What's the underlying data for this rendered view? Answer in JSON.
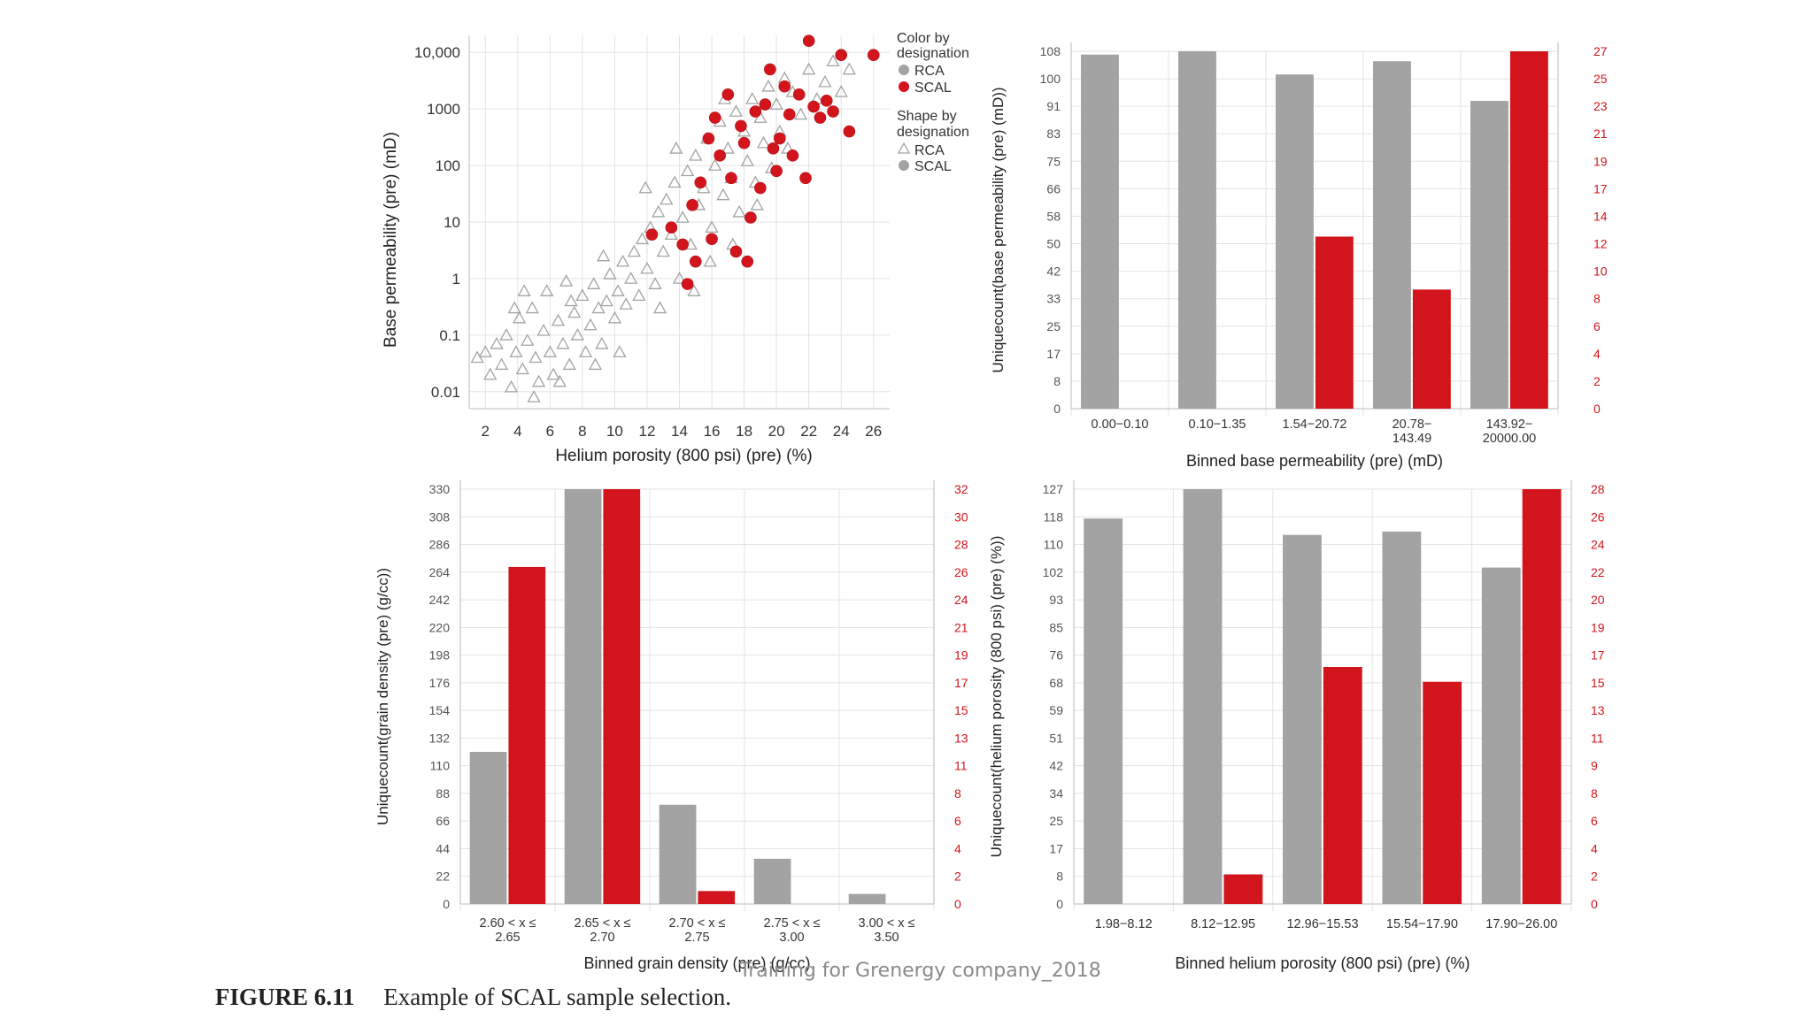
{
  "figure": {
    "caption_label": "FIGURE 6.11",
    "caption_text": "Example of SCAL sample selection.",
    "watermark": "Training for Grenergy company_2018"
  },
  "colors": {
    "rca": "#a3a3a3",
    "scal": "#d2151c",
    "grid": "#e3e3e3",
    "right_axis": "#d2151c"
  },
  "legend": {
    "color_title_1": "Color by",
    "color_title_2": "designation",
    "color_items": [
      "RCA",
      "SCAL"
    ],
    "shape_title_1": "Shape by",
    "shape_title_2": "designation",
    "shape_items": [
      "RCA",
      "SCAL"
    ]
  },
  "chart_data": [
    {
      "type": "scatter",
      "xlabel": "Helium porosity (800 psi) (pre) (%)",
      "ylabel": "Base permeability (pre) (mD)",
      "xlim": [
        1,
        27
      ],
      "ylim": [
        0.005,
        20000
      ],
      "yscale": "log",
      "x_ticks": [
        "2",
        "4",
        "6",
        "8",
        "10",
        "12",
        "14",
        "16",
        "18",
        "20",
        "22",
        "24",
        "26"
      ],
      "y_ticks": [
        {
          "v": 0.01,
          "label": "0.01"
        },
        {
          "v": 0.1,
          "label": "0.1"
        },
        {
          "v": 1,
          "label": "1"
        },
        {
          "v": 10,
          "label": "10"
        },
        {
          "v": 100,
          "label": "100"
        },
        {
          "v": 1000,
          "label": "1000"
        },
        {
          "v": 10000,
          "label": "10,000"
        }
      ],
      "series": [
        {
          "name": "RCA",
          "marker": "triangle",
          "points": [
            [
              1.5,
              0.04
            ],
            [
              2.3,
              0.02
            ],
            [
              2.7,
              0.07
            ],
            [
              3.0,
              0.03
            ],
            [
              3.3,
              0.1
            ],
            [
              3.6,
              0.012
            ],
            [
              3.9,
              0.05
            ],
            [
              4.1,
              0.2
            ],
            [
              4.3,
              0.025
            ],
            [
              4.6,
              0.08
            ],
            [
              4.9,
              0.3
            ],
            [
              5.1,
              0.04
            ],
            [
              5.3,
              0.015
            ],
            [
              5.6,
              0.12
            ],
            [
              5.8,
              0.6
            ],
            [
              6.0,
              0.05
            ],
            [
              6.2,
              0.02
            ],
            [
              6.5,
              0.18
            ],
            [
              6.8,
              0.07
            ],
            [
              7.0,
              0.9
            ],
            [
              7.2,
              0.03
            ],
            [
              7.5,
              0.25
            ],
            [
              7.7,
              0.1
            ],
            [
              8.0,
              0.5
            ],
            [
              8.2,
              0.05
            ],
            [
              8.5,
              0.15
            ],
            [
              8.7,
              0.8
            ],
            [
              9.0,
              0.3
            ],
            [
              9.2,
              0.07
            ],
            [
              9.5,
              0.4
            ],
            [
              9.7,
              1.2
            ],
            [
              10.0,
              0.2
            ],
            [
              10.2,
              0.6
            ],
            [
              10.5,
              2.0
            ],
            [
              10.7,
              0.35
            ],
            [
              11.0,
              1.0
            ],
            [
              11.2,
              3.0
            ],
            [
              11.5,
              0.5
            ],
            [
              11.7,
              5.0
            ],
            [
              12.0,
              1.5
            ],
            [
              12.2,
              8.0
            ],
            [
              12.5,
              0.8
            ],
            [
              12.7,
              15
            ],
            [
              13.0,
              3.0
            ],
            [
              13.2,
              25
            ],
            [
              13.5,
              6.0
            ],
            [
              13.7,
              50
            ],
            [
              14.0,
              1.0
            ],
            [
              14.2,
              12
            ],
            [
              14.5,
              80
            ],
            [
              14.7,
              4.0
            ],
            [
              15.0,
              150
            ],
            [
              15.2,
              20
            ],
            [
              15.5,
              40
            ],
            [
              15.7,
              300
            ],
            [
              16.0,
              8.0
            ],
            [
              16.2,
              100
            ],
            [
              16.5,
              600
            ],
            [
              16.7,
              30
            ],
            [
              17.0,
              200
            ],
            [
              17.2,
              60
            ],
            [
              17.5,
              900
            ],
            [
              17.7,
              15
            ],
            [
              18.0,
              400
            ],
            [
              18.2,
              120
            ],
            [
              18.5,
              1500
            ],
            [
              18.7,
              50
            ],
            [
              19.0,
              700
            ],
            [
              19.2,
              250
            ],
            [
              19.5,
              2500
            ],
            [
              19.7,
              90
            ],
            [
              20.0,
              1200
            ],
            [
              20.2,
              400
            ],
            [
              20.5,
              3500
            ],
            [
              20.7,
              200
            ],
            [
              21.0,
              2000
            ],
            [
              21.5,
              800
            ],
            [
              22.0,
              5000
            ],
            [
              22.5,
              1500
            ],
            [
              23.0,
              3000
            ],
            [
              23.5,
              7000
            ],
            [
              24.0,
              2000
            ],
            [
              24.5,
              5000
            ],
            [
              10.3,
              0.05
            ],
            [
              8.8,
              0.03
            ],
            [
              12.8,
              0.3
            ],
            [
              6.6,
              0.015
            ],
            [
              5.0,
              0.008
            ],
            [
              3.8,
              0.3
            ],
            [
              2.0,
              0.05
            ],
            [
              13.8,
              200
            ],
            [
              15.9,
              2.0
            ],
            [
              11.9,
              40
            ],
            [
              17.3,
              4.0
            ],
            [
              14.9,
              0.6
            ],
            [
              16.8,
              1500
            ],
            [
              18.8,
              20
            ],
            [
              9.3,
              2.5
            ],
            [
              7.3,
              0.4
            ],
            [
              4.4,
              0.6
            ]
          ]
        },
        {
          "name": "SCAL",
          "marker": "circle",
          "points": [
            [
              13.5,
              8
            ],
            [
              14.2,
              4
            ],
            [
              14.8,
              20
            ],
            [
              15.0,
              2
            ],
            [
              15.3,
              50
            ],
            [
              15.8,
              300
            ],
            [
              16.2,
              700
            ],
            [
              16.5,
              150
            ],
            [
              17.0,
              1800
            ],
            [
              17.2,
              60
            ],
            [
              17.5,
              3
            ],
            [
              17.8,
              500
            ],
            [
              18.0,
              250
            ],
            [
              18.4,
              12
            ],
            [
              18.7,
              900
            ],
            [
              19.0,
              40
            ],
            [
              19.3,
              1200
            ],
            [
              19.6,
              5000
            ],
            [
              19.8,
              200
            ],
            [
              20.2,
              300
            ],
            [
              20.5,
              2500
            ],
            [
              20.8,
              800
            ],
            [
              21.0,
              150
            ],
            [
              21.4,
              1800
            ],
            [
              21.8,
              60
            ],
            [
              22.0,
              16000
            ],
            [
              22.3,
              1100
            ],
            [
              22.7,
              700
            ],
            [
              23.1,
              1400
            ],
            [
              23.5,
              900
            ],
            [
              24.0,
              9000
            ],
            [
              24.5,
              400
            ],
            [
              26.0,
              9000
            ],
            [
              16.0,
              5
            ],
            [
              14.5,
              0.8
            ],
            [
              18.2,
              2
            ],
            [
              12.3,
              6
            ],
            [
              20.0,
              80
            ]
          ]
        }
      ]
    },
    {
      "type": "bar",
      "xlabel": "Binned base permeability (pre) (mD)",
      "ylabel": "Uniquecount(base permeability (pre) (mD))",
      "categories": [
        "0.00−0.10",
        "0.10−1.35",
        "1.54−20.72",
        "20.78−\n143.49",
        "143.92−\n20000.00"
      ],
      "ylim_left": [
        0,
        108
      ],
      "ylim_right": [
        0,
        27
      ],
      "y_ticks_left": [
        "0",
        "8",
        "17",
        "25",
        "33",
        "42",
        "50",
        "58",
        "66",
        "75",
        "83",
        "91",
        "100",
        "108"
      ],
      "y_ticks_right": [
        "0",
        "2",
        "4",
        "6",
        "8",
        "10",
        "12",
        "14",
        "17",
        "19",
        "21",
        "23",
        "25",
        "27"
      ],
      "series": [
        {
          "name": "RCA",
          "axis": "left",
          "values": [
            107,
            108,
            101,
            105,
            93
          ]
        },
        {
          "name": "SCAL",
          "axis": "right",
          "values": [
            0,
            0,
            13,
            9,
            27
          ]
        }
      ]
    },
    {
      "type": "bar",
      "xlabel": "Binned grain density (pre) (g/cc)",
      "ylabel": "Uniquecount(grain density (pre) (g/cc))",
      "categories": [
        "2.60 < x ≤\n2.65",
        "2.65 < x ≤\n2.70",
        "2.70 < x ≤\n2.75",
        "2.75 < x ≤\n3.00",
        "3.00 < x ≤\n3.50"
      ],
      "ylim_left": [
        0,
        330
      ],
      "ylim_right": [
        0,
        32
      ],
      "y_ticks_left": [
        "0",
        "22",
        "44",
        "66",
        "88",
        "110",
        "132",
        "154",
        "176",
        "198",
        "220",
        "242",
        "264",
        "286",
        "308",
        "330"
      ],
      "y_ticks_right": [
        "0",
        "2",
        "4",
        "6",
        "8",
        "11",
        "13",
        "15",
        "17",
        "19",
        "21",
        "24",
        "26",
        "28",
        "30",
        "32"
      ],
      "series": [
        {
          "name": "RCA",
          "axis": "left",
          "values": [
            121,
            330,
            79,
            36,
            8
          ]
        },
        {
          "name": "SCAL",
          "axis": "right",
          "values": [
            26,
            32,
            1,
            0,
            0
          ]
        }
      ]
    },
    {
      "type": "bar",
      "xlabel": "Binned helium porosity (800 psi) (pre) (%)",
      "ylabel": "Uniquecount(helium porosity (800 psi) (pre) (%))",
      "categories": [
        "1.98−8.12",
        "8.12−12.95",
        "12.96−15.53",
        "15.54−17.90",
        "17.90−26.00"
      ],
      "ylim_left": [
        0,
        127
      ],
      "ylim_right": [
        0,
        28
      ],
      "y_ticks_left": [
        "0",
        "8",
        "17",
        "25",
        "34",
        "42",
        "51",
        "59",
        "68",
        "76",
        "85",
        "93",
        "102",
        "110",
        "118",
        "127"
      ],
      "y_ticks_right": [
        "0",
        "2",
        "4",
        "6",
        "8",
        "9",
        "11",
        "13",
        "15",
        "17",
        "19",
        "20",
        "22",
        "24",
        "26",
        "28"
      ],
      "series": [
        {
          "name": "RCA",
          "axis": "left",
          "values": [
            118,
            127,
            113,
            114,
            103
          ]
        },
        {
          "name": "SCAL",
          "axis": "right",
          "values": [
            0,
            2,
            16,
            15,
            28
          ]
        }
      ]
    }
  ]
}
